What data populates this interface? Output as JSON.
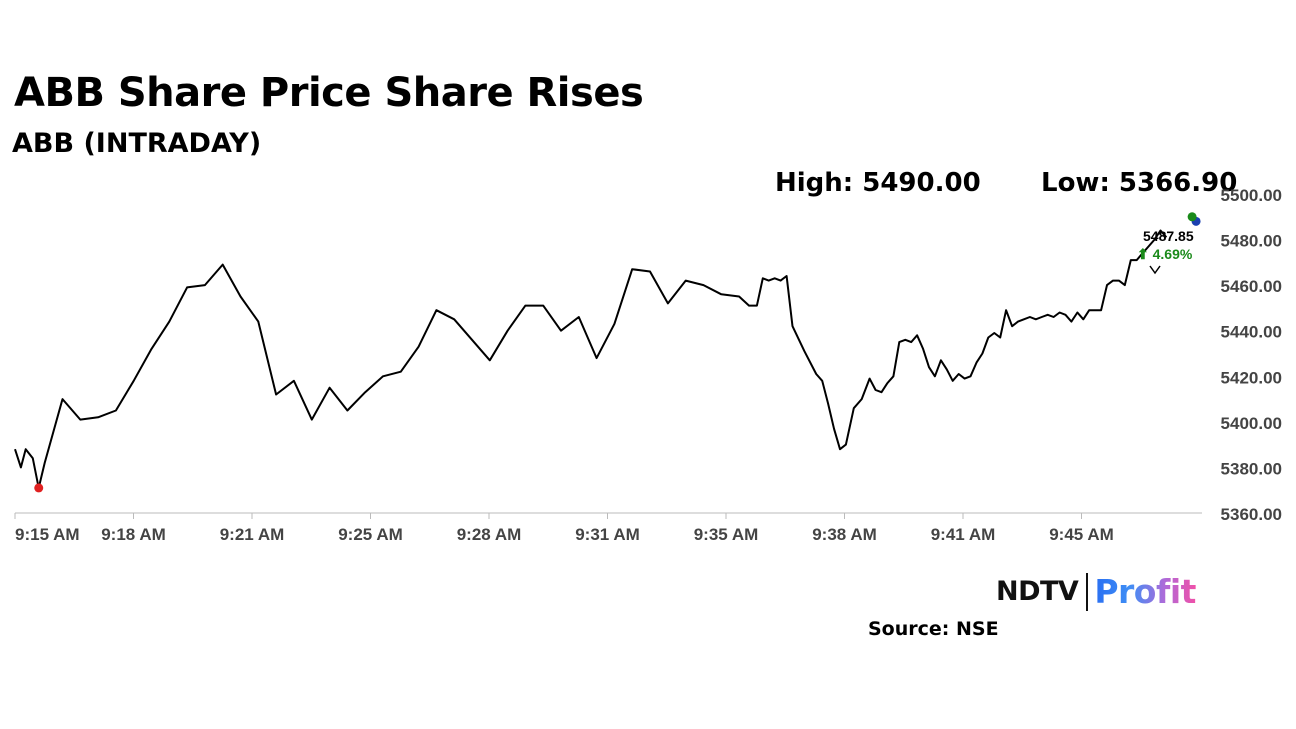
{
  "header": {
    "title": "ABB Share Price Share Rises",
    "subtitle": "ABB (INTRADAY)"
  },
  "stats": {
    "high": "High: 5490.00",
    "low": "Low: 5366.90"
  },
  "last": {
    "price": "5487.85",
    "change": "4.69%",
    "arrow": "⬆",
    "change_color": "#1a8a1a"
  },
  "logo": {
    "left": "NDTV",
    "right": "Profit"
  },
  "source": "Source: NSE",
  "colors": {
    "line": "#000000",
    "low_marker": "#e02020",
    "high_marker": "#1a8a1a",
    "last_marker": "#1a3fb0",
    "axis_text": "#444444"
  },
  "chart_data": {
    "type": "line",
    "title": "ABB (INTRADAY)",
    "ylim": [
      5360,
      5500
    ],
    "yticks": [
      5360,
      5380,
      5400,
      5420,
      5440,
      5460,
      5480,
      5500
    ],
    "ytick_labels": [
      "5360.00",
      "5380.00",
      "5400.00",
      "5420.00",
      "5440.00",
      "5460.00",
      "5480.00",
      "5500.00"
    ],
    "xticks": [
      "9:15 AM",
      "9:18 AM",
      "9:21 AM",
      "9:25 AM",
      "9:28 AM",
      "9:31 AM",
      "9:35 AM",
      "9:38 AM",
      "9:41 AM",
      "9:45 AM"
    ],
    "xlim_minutes": [
      0,
      30
    ],
    "series": [
      {
        "values": [
          [
            0.0,
            5388
          ],
          [
            0.15,
            5380
          ],
          [
            0.27,
            5388
          ],
          [
            0.45,
            5384
          ],
          [
            0.6,
            5371
          ],
          [
            0.75,
            5382
          ],
          [
            1.2,
            5410
          ],
          [
            1.65,
            5401
          ],
          [
            2.1,
            5402
          ],
          [
            2.55,
            5405
          ],
          [
            3.0,
            5418
          ],
          [
            3.45,
            5432
          ],
          [
            3.9,
            5444
          ],
          [
            4.35,
            5459
          ],
          [
            4.8,
            5460
          ],
          [
            5.25,
            5469
          ],
          [
            5.7,
            5455
          ],
          [
            6.15,
            5444
          ],
          [
            6.6,
            5412
          ],
          [
            7.05,
            5418
          ],
          [
            7.5,
            5401
          ],
          [
            7.95,
            5415
          ],
          [
            8.4,
            5405
          ],
          [
            8.85,
            5413
          ],
          [
            9.3,
            5420
          ],
          [
            9.75,
            5422
          ],
          [
            10.2,
            5433
          ],
          [
            10.65,
            5449
          ],
          [
            11.1,
            5445
          ],
          [
            11.55,
            5436
          ],
          [
            12.0,
            5427
          ],
          [
            12.45,
            5440
          ],
          [
            12.9,
            5451
          ],
          [
            13.35,
            5451
          ],
          [
            13.8,
            5440
          ],
          [
            14.25,
            5446
          ],
          [
            14.7,
            5428
          ],
          [
            15.15,
            5443
          ],
          [
            15.6,
            5467
          ],
          [
            16.05,
            5466
          ],
          [
            16.5,
            5452
          ],
          [
            16.95,
            5462
          ],
          [
            17.4,
            5460
          ],
          [
            17.85,
            5456
          ],
          [
            18.3,
            5455
          ],
          [
            18.55,
            5451
          ],
          [
            18.75,
            5451
          ],
          [
            18.9,
            5463
          ],
          [
            19.05,
            5462
          ],
          [
            19.2,
            5463
          ],
          [
            19.35,
            5462
          ],
          [
            19.5,
            5464
          ],
          [
            19.65,
            5442
          ],
          [
            19.95,
            5431
          ],
          [
            20.25,
            5421
          ],
          [
            20.4,
            5418
          ],
          [
            20.55,
            5408
          ],
          [
            20.7,
            5397
          ],
          [
            20.85,
            5388
          ],
          [
            21.0,
            5390
          ],
          [
            21.2,
            5406
          ],
          [
            21.4,
            5410
          ],
          [
            21.6,
            5419
          ],
          [
            21.75,
            5414
          ],
          [
            21.9,
            5413
          ],
          [
            22.05,
            5417
          ],
          [
            22.2,
            5420
          ],
          [
            22.35,
            5435
          ],
          [
            22.5,
            5436
          ],
          [
            22.65,
            5435
          ],
          [
            22.8,
            5438
          ],
          [
            22.95,
            5432
          ],
          [
            23.1,
            5424
          ],
          [
            23.25,
            5420
          ],
          [
            23.4,
            5427
          ],
          [
            23.55,
            5423
          ],
          [
            23.7,
            5418
          ],
          [
            23.85,
            5421
          ],
          [
            24.0,
            5419
          ],
          [
            24.15,
            5420
          ],
          [
            24.3,
            5426
          ],
          [
            24.45,
            5430
          ],
          [
            24.6,
            5437
          ],
          [
            24.75,
            5439
          ],
          [
            24.9,
            5437
          ],
          [
            25.05,
            5449
          ],
          [
            25.2,
            5442
          ],
          [
            25.35,
            5444
          ],
          [
            25.5,
            5445
          ],
          [
            25.65,
            5446
          ],
          [
            25.8,
            5445
          ],
          [
            25.95,
            5446
          ],
          [
            26.1,
            5447
          ],
          [
            26.25,
            5446
          ],
          [
            26.4,
            5448
          ],
          [
            26.55,
            5447
          ],
          [
            26.7,
            5444
          ],
          [
            26.85,
            5448
          ],
          [
            27.0,
            5445
          ],
          [
            27.15,
            5449
          ],
          [
            27.3,
            5449
          ],
          [
            27.45,
            5449
          ],
          [
            27.6,
            5460
          ],
          [
            27.75,
            5462
          ],
          [
            27.9,
            5462
          ],
          [
            28.05,
            5460
          ],
          [
            28.2,
            5471
          ],
          [
            28.35,
            5471
          ],
          [
            28.5,
            5474
          ],
          [
            28.65,
            5477
          ],
          [
            28.8,
            5480
          ],
          [
            28.95,
            5484
          ],
          [
            29.1,
            5481
          ]
        ]
      }
    ],
    "low_point": [
      0.6,
      5371
    ],
    "last_point": [
      29.85,
      5488
    ],
    "high_point": [
      29.75,
      5490
    ],
    "annotation": {
      "price": "5487.85",
      "change": "4.69%"
    }
  }
}
